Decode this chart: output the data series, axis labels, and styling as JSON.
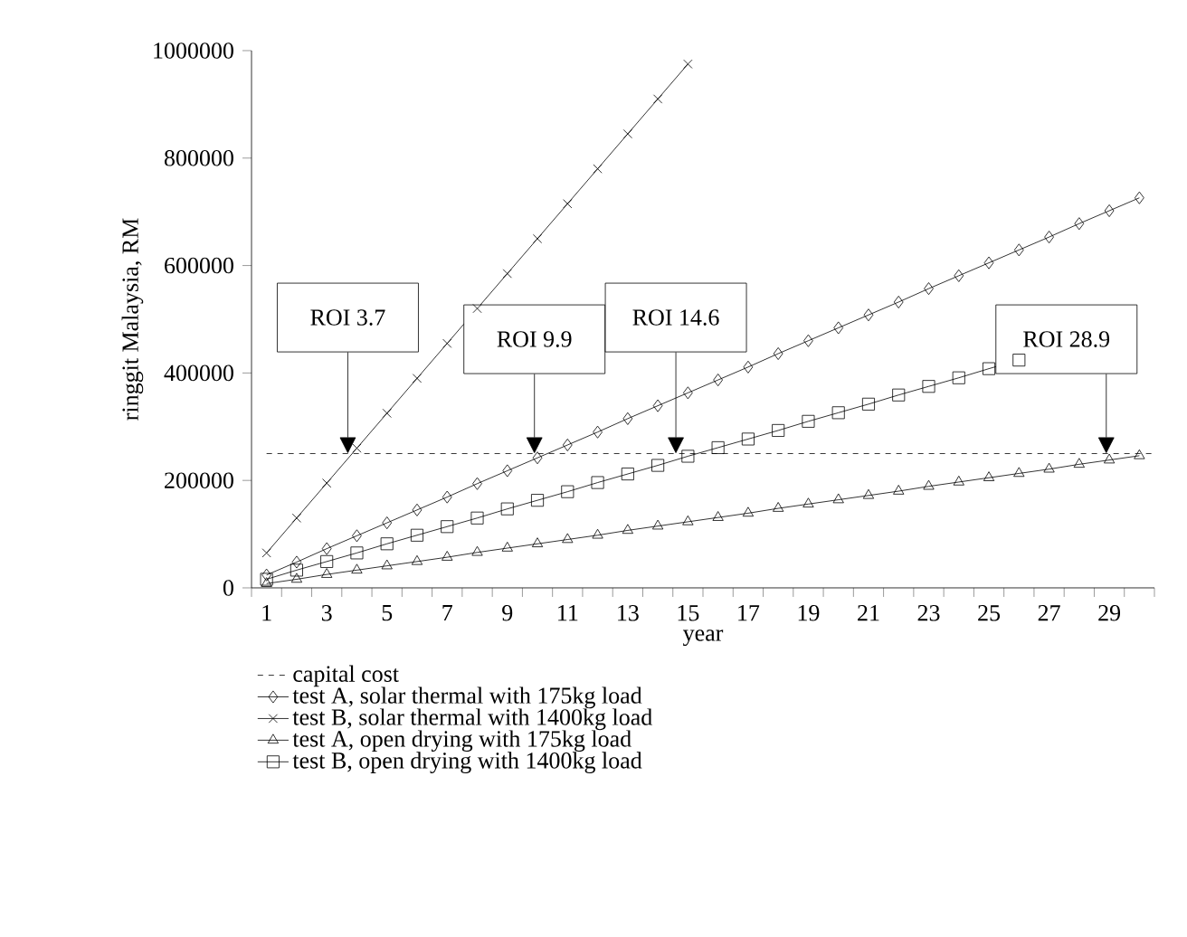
{
  "chart_data": {
    "type": "line",
    "xlabel": "year",
    "ylabel": "ringgit Malaysia, RM",
    "x": [
      1,
      2,
      3,
      4,
      5,
      6,
      7,
      8,
      9,
      10,
      11,
      12,
      13,
      14,
      15,
      16,
      17,
      18,
      19,
      20,
      21,
      22,
      23,
      24,
      25,
      26,
      27,
      28,
      29,
      30
    ],
    "xlim": [
      0.5,
      30.5
    ],
    "xticks": [
      1,
      3,
      5,
      7,
      9,
      11,
      13,
      15,
      17,
      19,
      21,
      23,
      25,
      27,
      29
    ],
    "ylim": [
      0,
      1000000
    ],
    "yticks": [
      0,
      200000,
      400000,
      600000,
      800000,
      1000000
    ],
    "grid": false,
    "legend": "bottom",
    "line_style": "solid",
    "ref_lines": [
      {
        "axis": "y",
        "value": 250000,
        "label": "capital cost",
        "line_style": "dashed",
        "color": "#000000"
      }
    ],
    "series": [
      {
        "name": "test A, solar thermal with 175kg load",
        "color": "#000000",
        "marker": "diamond",
        "values": [
          24000,
          48000,
          73000,
          97000,
          121000,
          145000,
          169000,
          194000,
          218000,
          242000,
          266000,
          290000,
          315000,
          339000,
          363000,
          387000,
          411000,
          436000,
          460000,
          484000,
          508000,
          532000,
          557000,
          581000,
          605000,
          629000,
          653000,
          678000,
          702000,
          726000
        ]
      },
      {
        "name": "test B, solar thermal with 1400kg load",
        "color": "#000000",
        "marker": "cross",
        "values": [
          65000,
          130000,
          195000,
          260000,
          325000,
          390000,
          455000,
          520000,
          585000,
          650000,
          715000,
          780000,
          845000,
          910000,
          975000,
          null,
          null,
          null,
          null,
          null,
          null,
          null,
          null,
          null,
          null,
          null,
          null,
          null,
          null,
          null
        ]
      },
      {
        "name": "test A, open drying with 175kg load",
        "color": "#000000",
        "marker": "triangle",
        "values": [
          8000,
          16000,
          25000,
          33000,
          41000,
          49000,
          57000,
          66000,
          74000,
          82000,
          90000,
          98000,
          107000,
          115000,
          123000,
          131000,
          139000,
          148000,
          156000,
          164000,
          172000,
          180000,
          189000,
          197000,
          205000,
          213000,
          221000,
          230000,
          238000,
          246000
        ]
      },
      {
        "name": "test B, open drying with 1400kg load",
        "color": "#000000",
        "marker": "square",
        "values": [
          16000,
          33000,
          49000,
          65000,
          82000,
          98000,
          114000,
          130000,
          147000,
          163000,
          179000,
          196000,
          212000,
          228000,
          245000,
          261000,
          277000,
          293000,
          310000,
          326000,
          342000,
          359000,
          375000,
          391000,
          408000,
          424000,
          null,
          null,
          null,
          null
        ]
      }
    ],
    "annotations": [
      {
        "text": "ROI 3.7",
        "x": 3.7,
        "y": 250000
      },
      {
        "text": "ROI 9.9",
        "x": 9.9,
        "y": 250000
      },
      {
        "text": "ROI 14.6",
        "x": 14.6,
        "y": 250000
      },
      {
        "text": "ROI 28.9",
        "x": 28.9,
        "y": 250000
      }
    ]
  }
}
